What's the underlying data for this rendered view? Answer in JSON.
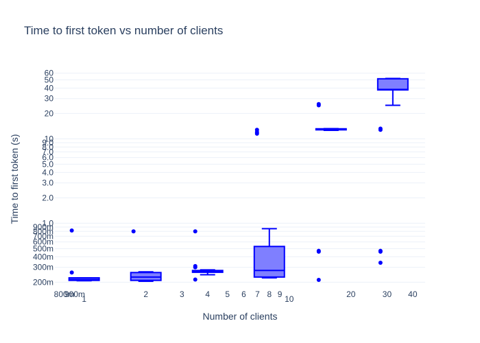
{
  "chart_data": {
    "type": "box",
    "title": "Time to first token vs number of clients",
    "xlabel": "Number of clients",
    "ylabel": "Time to first token (s)",
    "x_scale": "log",
    "y_scale": "log",
    "xlim": [
      0.72,
      46
    ],
    "ylim": [
      0.17,
      68
    ],
    "color": "#0000ff",
    "fill": "#7f7fff",
    "grid": true,
    "x_ticks": [
      "800m",
      "900m",
      "1",
      "2",
      "3",
      "4",
      "5",
      "6",
      "7",
      "8",
      "9",
      "10",
      "20",
      "30",
      "40"
    ],
    "y_ticks": [
      "200m",
      "300m",
      "400m",
      "500m",
      "600m",
      "700m",
      "800m",
      "900m",
      "1.0",
      "2.0",
      "3.0",
      "4.0",
      "5.0",
      "6.0",
      "7.0",
      "8.0",
      "9.0",
      "10",
      "20",
      "30",
      "40",
      "50",
      "60"
    ],
    "boxes": [
      {
        "x": 1,
        "q1": 0.21,
        "median": 0.215,
        "q3": 0.225,
        "lower_whisker": 0.208,
        "upper_whisker": 0.225,
        "outliers": [
          0.26,
          0.82
        ]
      },
      {
        "x": 2,
        "q1": 0.21,
        "median": 0.23,
        "q3": 0.26,
        "lower_whisker": 0.205,
        "upper_whisker": 0.265,
        "outliers": [
          0.8
        ]
      },
      {
        "x": 4,
        "q1": 0.262,
        "median": 0.268,
        "q3": 0.275,
        "lower_whisker": 0.245,
        "upper_whisker": 0.28,
        "outliers": [
          0.215,
          0.3,
          0.31,
          0.8
        ]
      },
      {
        "x": 8,
        "q1": 0.23,
        "median": 0.275,
        "q3": 0.53,
        "lower_whisker": 0.225,
        "upper_whisker": 0.86,
        "outliers": [
          11.5,
          12.0,
          12.8
        ]
      },
      {
        "x": 16,
        "q1": 12.85,
        "median": 13.0,
        "q3": 13.15,
        "lower_whisker": 12.6,
        "upper_whisker": 13.2,
        "outliers": [
          0.213,
          0.46,
          0.47,
          25.0,
          25.8
        ]
      },
      {
        "x": 32,
        "q1": 38.0,
        "median": 38.5,
        "q3": 51.5,
        "lower_whisker": 25.0,
        "upper_whisker": 52.0,
        "outliers": [
          0.34,
          0.46,
          0.47,
          12.8,
          13.2
        ]
      }
    ]
  }
}
